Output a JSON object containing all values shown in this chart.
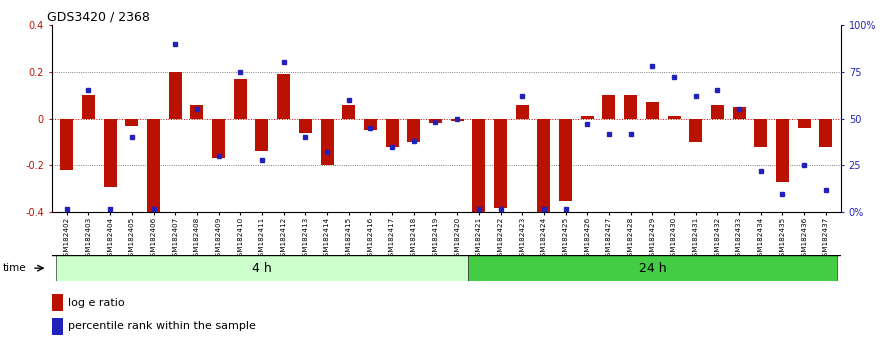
{
  "title": "GDS3420 / 2368",
  "categories": [
    "GSM182402",
    "GSM182403",
    "GSM182404",
    "GSM182405",
    "GSM182406",
    "GSM182407",
    "GSM182408",
    "GSM182409",
    "GSM182410",
    "GSM182411",
    "GSM182412",
    "GSM182413",
    "GSM182414",
    "GSM182415",
    "GSM182416",
    "GSM182417",
    "GSM182418",
    "GSM182419",
    "GSM182420",
    "GSM182421",
    "GSM182422",
    "GSM182423",
    "GSM182424",
    "GSM182425",
    "GSM182426",
    "GSM182427",
    "GSM182428",
    "GSM182429",
    "GSM182430",
    "GSM182431",
    "GSM182432",
    "GSM182433",
    "GSM182434",
    "GSM182435",
    "GSM182436",
    "GSM182437"
  ],
  "log_ratio": [
    -0.22,
    0.1,
    -0.29,
    -0.03,
    -0.4,
    0.2,
    0.06,
    -0.17,
    0.17,
    -0.14,
    0.19,
    -0.06,
    -0.2,
    0.06,
    -0.05,
    -0.12,
    -0.1,
    -0.02,
    -0.01,
    -0.4,
    -0.38,
    0.06,
    -0.4,
    -0.35,
    0.01,
    0.1,
    0.1,
    0.07,
    0.01,
    -0.1,
    0.06,
    0.05,
    -0.12,
    -0.27,
    -0.04,
    -0.12
  ],
  "percentile": [
    2,
    65,
    2,
    40,
    2,
    90,
    55,
    30,
    75,
    28,
    80,
    40,
    32,
    60,
    45,
    35,
    38,
    48,
    50,
    2,
    2,
    62,
    2,
    2,
    47,
    42,
    42,
    78,
    72,
    62,
    65,
    55,
    22,
    10,
    25,
    12
  ],
  "bar_color": "#bb1100",
  "dot_color": "#2222bb",
  "ylim": [
    -0.4,
    0.4
  ],
  "y2lim": [
    0,
    100
  ],
  "yticks": [
    -0.4,
    -0.2,
    0.0,
    0.2,
    0.4
  ],
  "y2ticks": [
    0,
    25,
    50,
    75,
    100
  ],
  "hline_color": "#cc0000",
  "dotline_color": "#555555",
  "group1_label": "4 h",
  "group2_label": "24 h",
  "group1_count": 19,
  "group2_count": 17,
  "group1_color": "#ccffcc",
  "group2_color": "#44cc44",
  "legend_log": "log e ratio",
  "legend_pct": "percentile rank within the sample",
  "time_label": "time"
}
